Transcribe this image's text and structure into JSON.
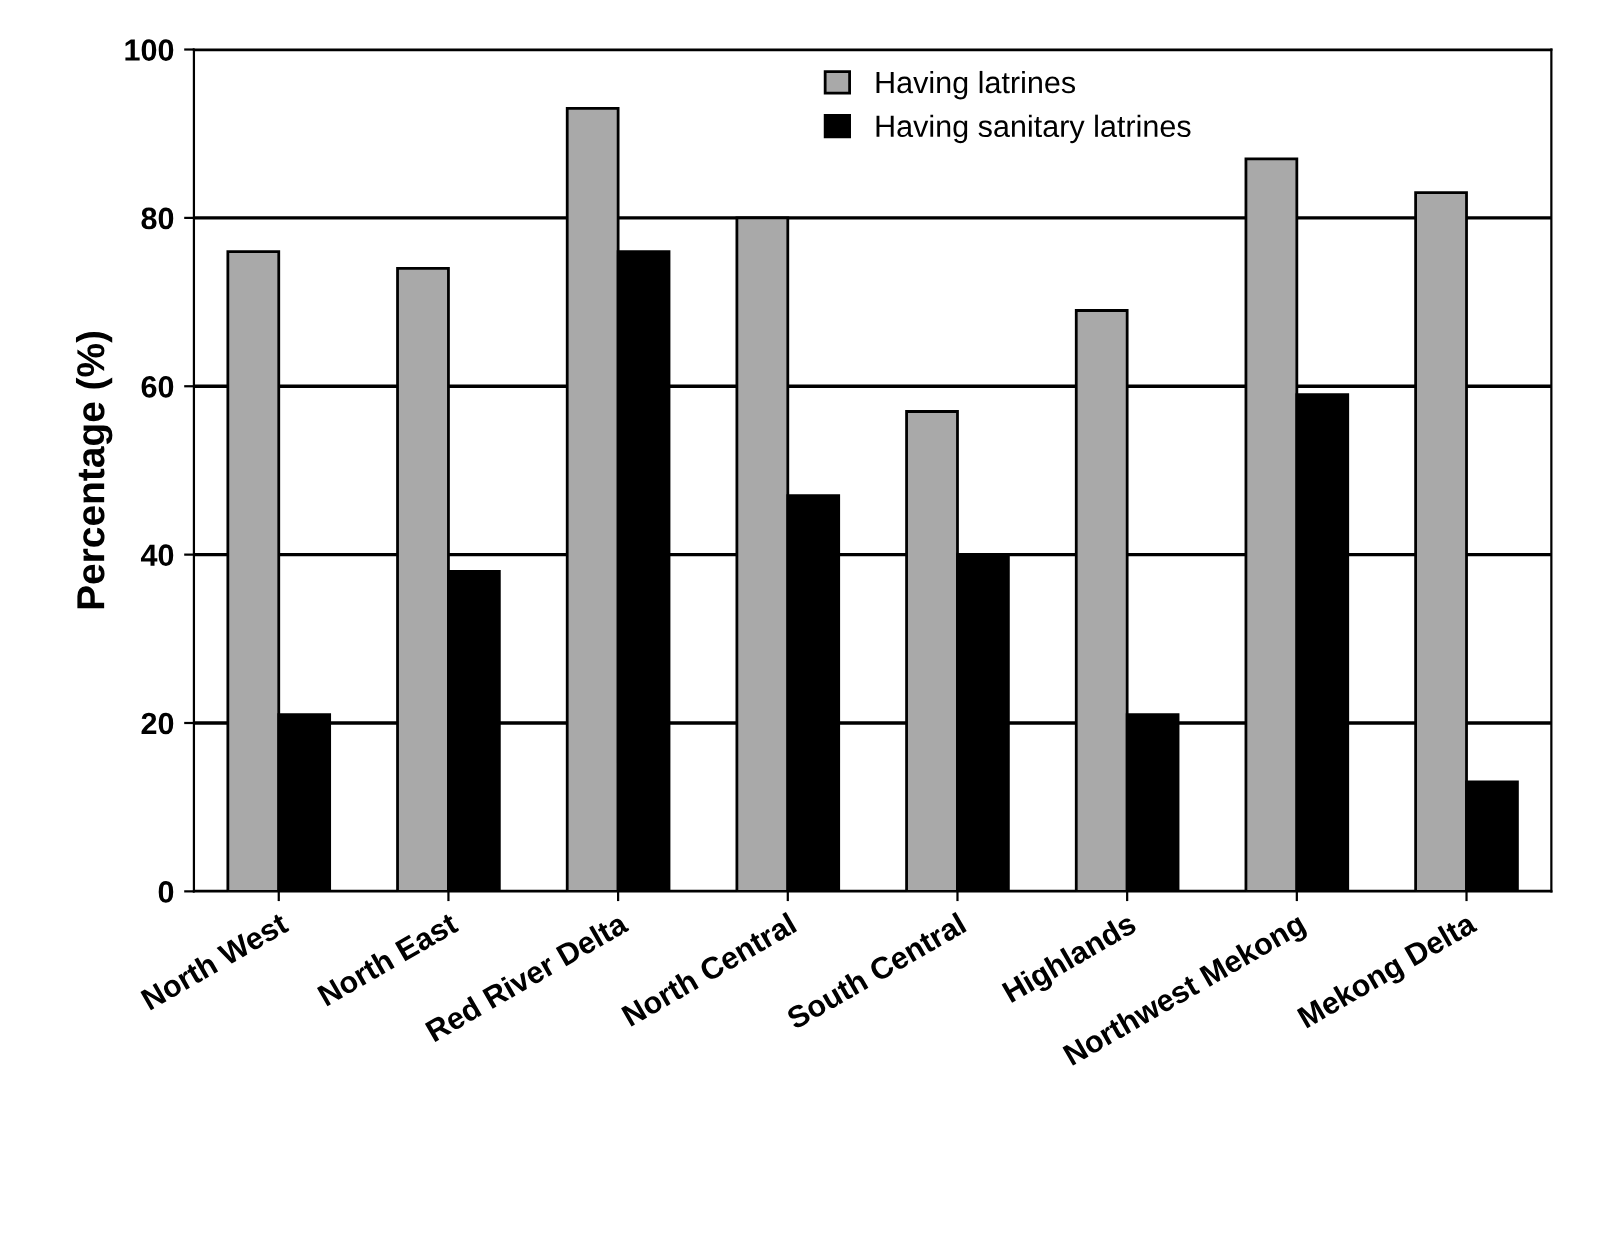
{
  "chart_data": {
    "type": "bar",
    "ylabel": "Percentage (%)",
    "categories": [
      "North West",
      "North East",
      "Red River Delta",
      "North Central",
      "South Central",
      "Highlands",
      "Northwest Mekong",
      "Mekong Delta"
    ],
    "series": [
      {
        "name": "Having latrines",
        "color": "#a9a9a9",
        "values": [
          76,
          74,
          93,
          80,
          57,
          69,
          87,
          83
        ]
      },
      {
        "name": "Having sanitary latrines",
        "color": "#000000",
        "values": [
          21,
          38,
          76,
          47,
          40,
          21,
          59,
          13
        ]
      }
    ],
    "ylim": [
      0,
      100
    ],
    "yticks": [
      0,
      20,
      40,
      60,
      80,
      100
    ],
    "grid": "y",
    "legend": "top"
  }
}
